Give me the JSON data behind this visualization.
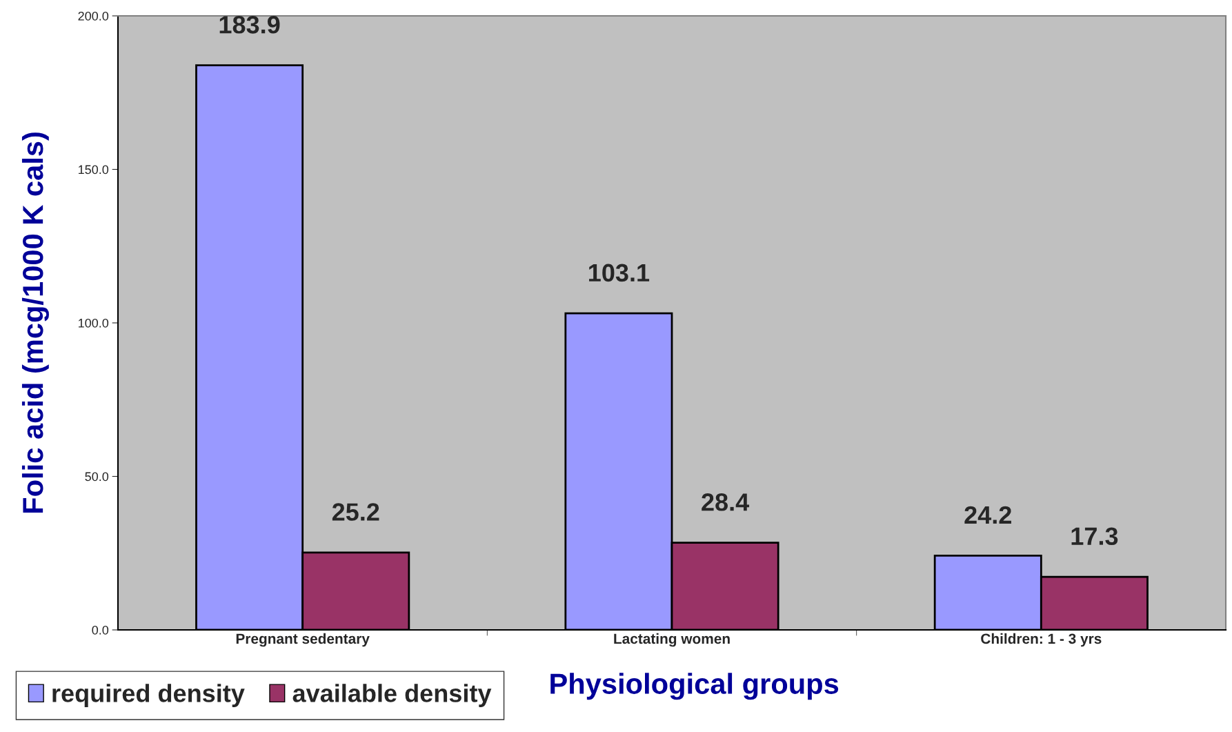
{
  "chart_data": {
    "type": "bar",
    "xlabel": "Physiological groups",
    "ylabel": "Folic acid (mcg/1000 K cals)",
    "categories": [
      "Pregnant sedentary",
      "Lactating women",
      "Children: 1 - 3 yrs"
    ],
    "series": [
      {
        "name": "required density",
        "color": "#9999ff",
        "values": [
          183.9,
          103.1,
          24.2
        ]
      },
      {
        "name": "available density",
        "color": "#993366",
        "values": [
          25.2,
          28.4,
          17.3
        ]
      }
    ],
    "ylim": [
      0,
      200
    ],
    "yticks": [
      {
        "value": 0,
        "label": "0.0"
      },
      {
        "value": 50,
        "label": "50.0"
      },
      {
        "value": 100,
        "label": "100.0"
      },
      {
        "value": 150,
        "label": "150.0"
      },
      {
        "value": 200,
        "label": "200.0"
      }
    ],
    "data_labels": true,
    "grid": false,
    "legend": "bottom left"
  }
}
